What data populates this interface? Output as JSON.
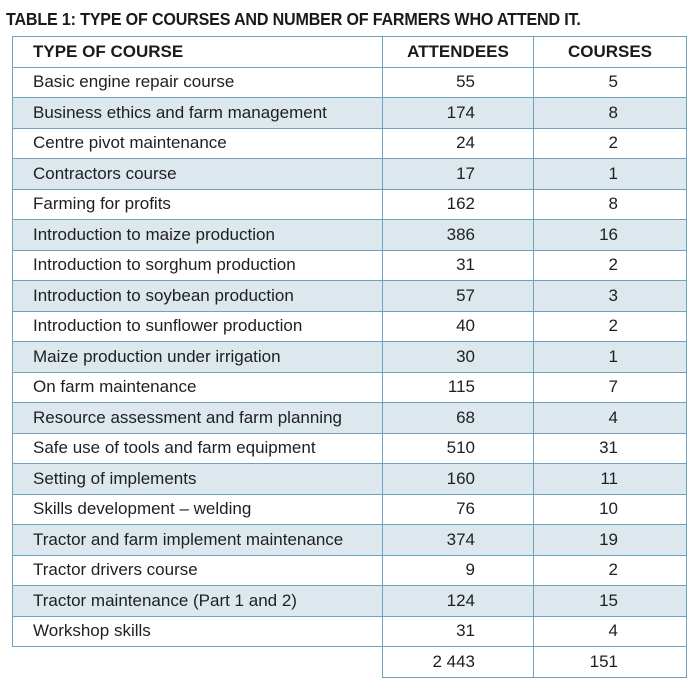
{
  "title": "TABLE 1: TYPE OF COURSES AND NUMBER OF FARMERS WHO ATTEND IT.",
  "columns": [
    "TYPE OF COURSE",
    "ATTENDEES",
    "COURSES"
  ],
  "rows": [
    {
      "course": "Basic engine repair course",
      "attendees": "55",
      "courses": "5"
    },
    {
      "course": "Business ethics and farm management",
      "attendees": "174",
      "courses": "8"
    },
    {
      "course": "Centre pivot maintenance",
      "attendees": "24",
      "courses": "2"
    },
    {
      "course": "Contractors course",
      "attendees": "17",
      "courses": "1"
    },
    {
      "course": "Farming for profits",
      "attendees": "162",
      "courses": "8"
    },
    {
      "course": "Introduction to maize production",
      "attendees": "386",
      "courses": "16"
    },
    {
      "course": "Introduction to sorghum production",
      "attendees": "31",
      "courses": "2"
    },
    {
      "course": "Introduction to soybean production",
      "attendees": "57",
      "courses": "3"
    },
    {
      "course": "Introduction to sunflower production",
      "attendees": "40",
      "courses": "2"
    },
    {
      "course": "Maize production under irrigation",
      "attendees": "30",
      "courses": "1"
    },
    {
      "course": "On farm maintenance",
      "attendees": "115",
      "courses": "7"
    },
    {
      "course": "Resource assessment and farm planning",
      "attendees": "68",
      "courses": "4"
    },
    {
      "course": "Safe use of tools and farm equipment",
      "attendees": "510",
      "courses": "31"
    },
    {
      "course": "Setting of implements",
      "attendees": "160",
      "courses": "11"
    },
    {
      "course": "Skills development – welding",
      "attendees": "76",
      "courses": "10"
    },
    {
      "course": "Tractor and farm implement maintenance",
      "attendees": "374",
      "courses": "19"
    },
    {
      "course": "Tractor drivers course",
      "attendees": "9",
      "courses": "2"
    },
    {
      "course": "Tractor maintenance (Part 1 and 2)",
      "attendees": "124",
      "courses": "15"
    },
    {
      "course": "Workshop skills",
      "attendees": "31",
      "courses": "4"
    }
  ],
  "totals": {
    "attendees": "2 443",
    "courses": "151"
  },
  "colors": {
    "border": "#6fa3bd",
    "row_shade": "#dce8ee"
  }
}
